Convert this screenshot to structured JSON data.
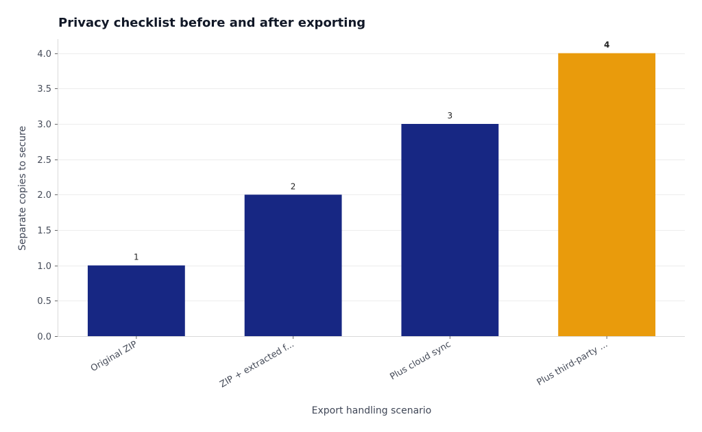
{
  "chart_data": {
    "type": "bar",
    "title": "Privacy checklist before and after exporting",
    "xlabel": "Export handling scenario",
    "ylabel": "Separate copies to secure",
    "categories": [
      "Original ZIP",
      "ZIP + extracted f...",
      "Plus cloud sync",
      "Plus third-party ..."
    ],
    "values": [
      1,
      2,
      3,
      4
    ],
    "data_labels": [
      "1",
      "2",
      "3",
      "4"
    ],
    "yticks": [
      "0.0",
      "0.5",
      "1.0",
      "1.5",
      "2.0",
      "2.5",
      "3.0",
      "3.5",
      "4.0"
    ],
    "ylim": [
      0,
      4.2
    ],
    "grid": "horizontal",
    "colors": {
      "default": "#172783",
      "highlight": "#e99b0c",
      "highlight_index": 3
    }
  }
}
